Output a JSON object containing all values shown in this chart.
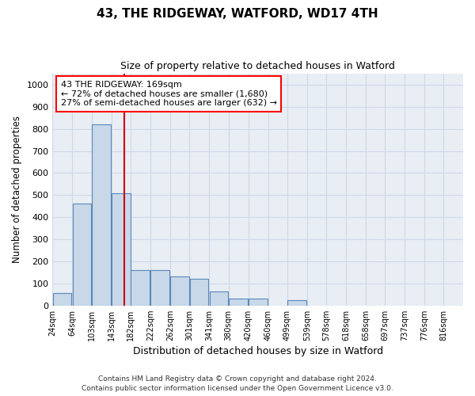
{
  "title1": "43, THE RIDGEWAY, WATFORD, WD17 4TH",
  "title2": "Size of property relative to detached houses in Watford",
  "xlabel": "Distribution of detached houses by size in Watford",
  "ylabel": "Number of detached properties",
  "footnote1": "Contains HM Land Registry data © Crown copyright and database right 2024.",
  "footnote2": "Contains public sector information licensed under the Open Government Licence v3.0.",
  "bar_left_edges": [
    24,
    64,
    103,
    143,
    182,
    222,
    262,
    301,
    341,
    380,
    420,
    460,
    499,
    539,
    578,
    618,
    658,
    697,
    737,
    776
  ],
  "bar_heights": [
    55,
    460,
    820,
    510,
    160,
    160,
    130,
    120,
    65,
    30,
    30,
    0,
    25,
    0,
    0,
    0,
    0,
    0,
    0,
    0
  ],
  "bin_width": 39,
  "bar_color": "#c8d8e8",
  "bar_edge_color": "#5a88bb",
  "tick_labels": [
    "24sqm",
    "64sqm",
    "103sqm",
    "143sqm",
    "182sqm",
    "222sqm",
    "262sqm",
    "301sqm",
    "341sqm",
    "380sqm",
    "420sqm",
    "460sqm",
    "499sqm",
    "539sqm",
    "578sqm",
    "618sqm",
    "658sqm",
    "697sqm",
    "737sqm",
    "776sqm",
    "816sqm"
  ],
  "vline_x": 169,
  "vline_color": "#cc0000",
  "annotation_line1": "43 THE RIDGEWAY: 169sqm",
  "annotation_line2": "← 72% of detached houses are smaller (1,680)",
  "annotation_line3": "27% of semi-detached houses are larger (632) →",
  "ylim": [
    0,
    1050
  ],
  "xlim": [
    24,
    855
  ],
  "grid_color": "#d0d8e8",
  "bg_color": "#e8eef4"
}
